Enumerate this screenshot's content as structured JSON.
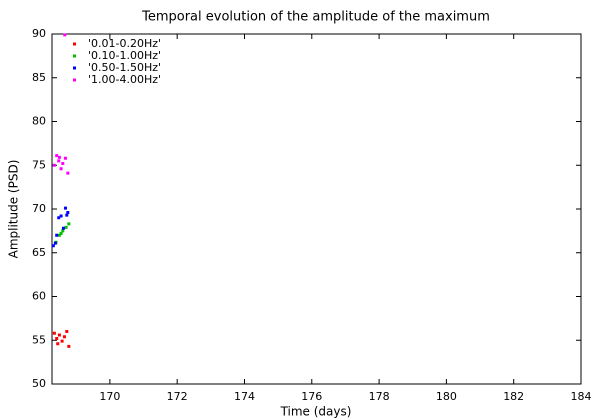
{
  "chart_data": {
    "type": "scatter",
    "title": "Temporal evolution of the amplitude of the maximum",
    "x_label": "Time (days)",
    "y_label": "Amplitude (PSD)",
    "xlim": [
      168.28,
      184
    ],
    "ylim": [
      50,
      90
    ],
    "xticks": [
      170,
      172,
      174,
      176,
      178,
      180,
      182,
      184
    ],
    "yticks": [
      50,
      55,
      60,
      65,
      70,
      75,
      80,
      85,
      90
    ],
    "legend": "upper-left",
    "series": [
      {
        "name": "'0.01-0.20Hz'",
        "color": "#ff0000",
        "x": [
          168.35,
          168.42,
          168.45,
          168.5,
          168.58,
          168.65,
          168.72,
          168.78
        ],
        "values": [
          55.8,
          55.2,
          54.6,
          55.6,
          54.9,
          55.4,
          56.0,
          54.3
        ]
      },
      {
        "name": "'0.10-1.00Hz'",
        "color": "#00c000",
        "x": [
          168.4,
          168.5,
          168.55,
          168.6,
          168.7,
          168.78
        ],
        "values": [
          66.2,
          67.0,
          67.2,
          67.5,
          67.9,
          68.3
        ]
      },
      {
        "name": "'0.50-1.50Hz'",
        "color": "#0000ff",
        "x": [
          168.32,
          168.38,
          168.42,
          168.48,
          168.55,
          168.62,
          168.68,
          168.72,
          168.75
        ],
        "values": [
          65.8,
          66.1,
          67.0,
          69.0,
          69.2,
          67.8,
          70.1,
          69.3,
          69.6
        ]
      },
      {
        "name": "'1.00-4.00Hz'",
        "color": "#ff00ff",
        "x": [
          168.35,
          168.42,
          168.48,
          168.5,
          168.55,
          168.6,
          168.66,
          168.68,
          168.75
        ],
        "values": [
          75.0,
          76.1,
          75.5,
          75.9,
          74.6,
          75.2,
          89.9,
          75.8,
          74.1
        ]
      }
    ]
  }
}
